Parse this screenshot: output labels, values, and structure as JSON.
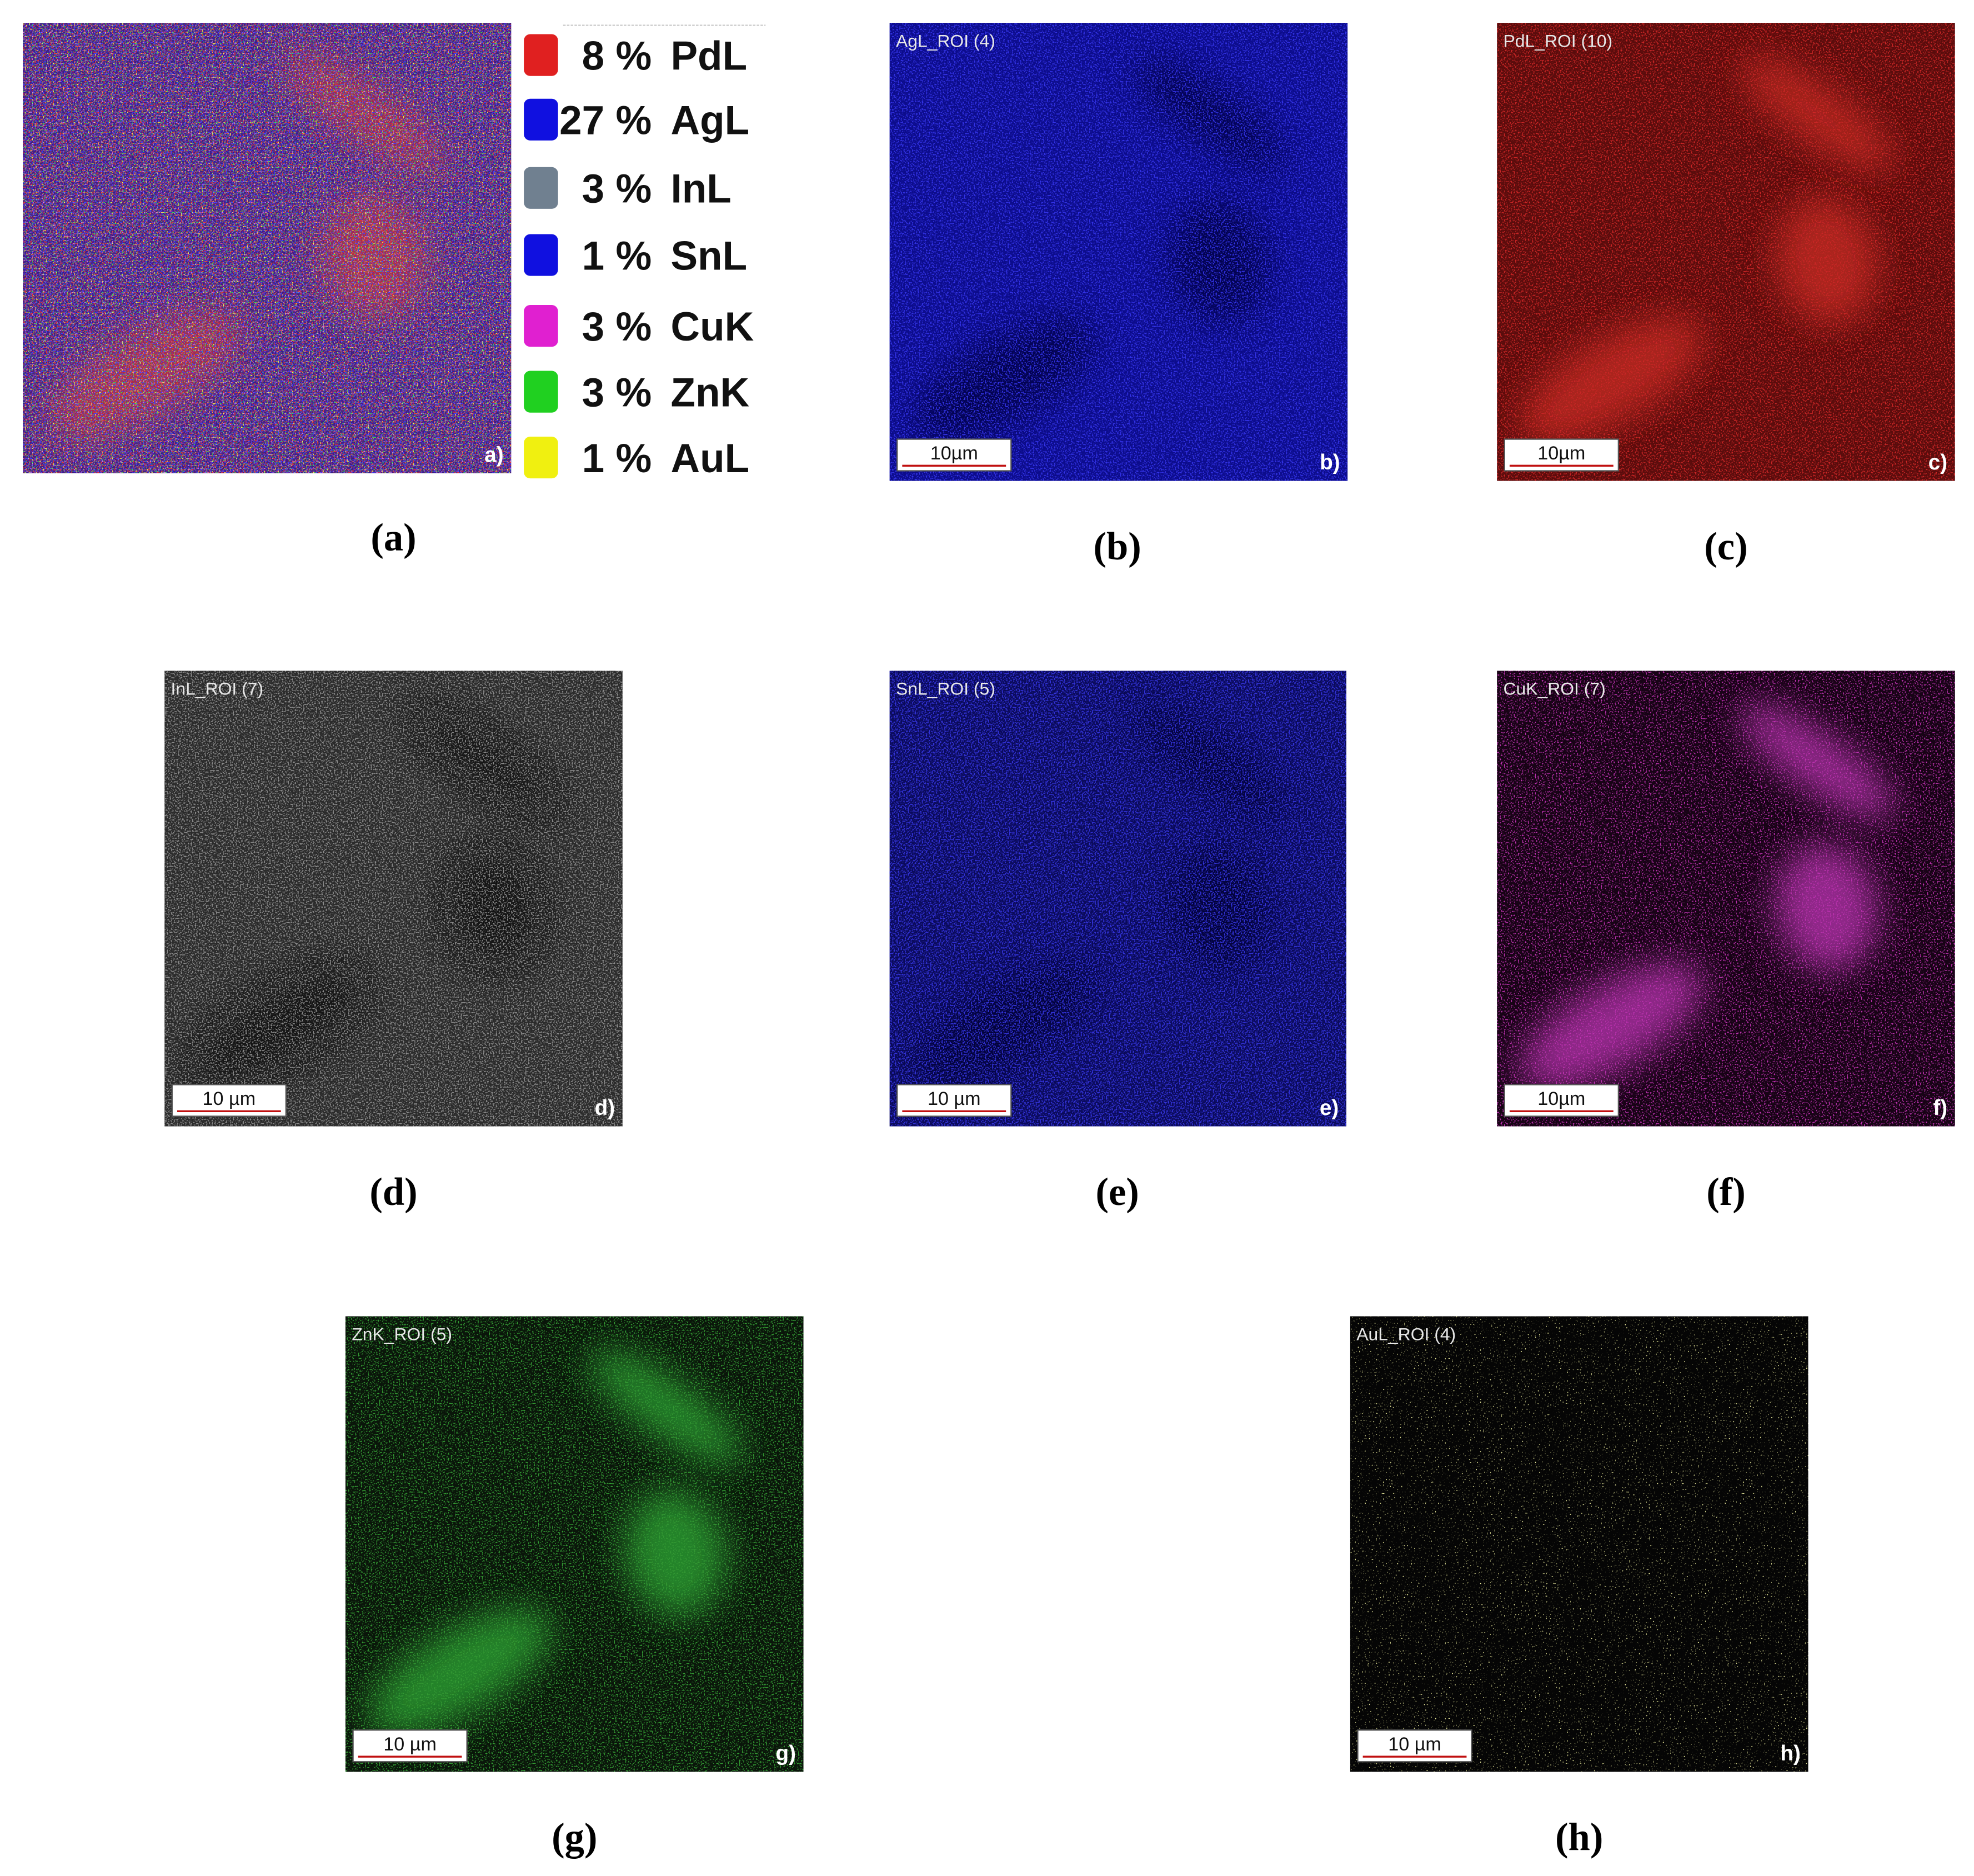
{
  "panels": [
    {
      "caption": "(a)",
      "corner": "a)",
      "legend": [
        {
          "percent": "8 %",
          "element": "PdL"
        },
        {
          "percent": "27 %",
          "element": "AgL"
        },
        {
          "percent": "3 %",
          "element": "InL"
        },
        {
          "percent": "1 %",
          "element": "SnL"
        },
        {
          "percent": "3 %",
          "element": "CuK"
        },
        {
          "percent": "3 %",
          "element": "ZnK"
        },
        {
          "percent": "1 %",
          "element": "AuL"
        }
      ]
    },
    {
      "caption": "(b)",
      "roi": "AgL_ROI (4)",
      "scale_bar": "10µm",
      "corner": "b)"
    },
    {
      "caption": "(c)",
      "roi": "PdL_ROI (10)",
      "scale_bar": "10µm",
      "corner": "c)"
    },
    {
      "caption": "(d)",
      "roi": "InL_ROI (7)",
      "scale_bar": "10 µm",
      "corner": "d)"
    },
    {
      "caption": "(e)",
      "roi": "SnL_ROI (5)",
      "scale_bar": "10 µm",
      "corner": "e)"
    },
    {
      "caption": "(f)",
      "roi": "CuK_ROI (7)",
      "scale_bar": "10µm",
      "corner": "f)"
    },
    {
      "caption": "(g)",
      "roi": "ZnK_ROI (5)",
      "scale_bar": "10 µm",
      "corner": "g)"
    },
    {
      "caption": "(h)",
      "roi": "AuL_ROI (4)",
      "scale_bar": "10 µm",
      "corner": "h)"
    }
  ]
}
